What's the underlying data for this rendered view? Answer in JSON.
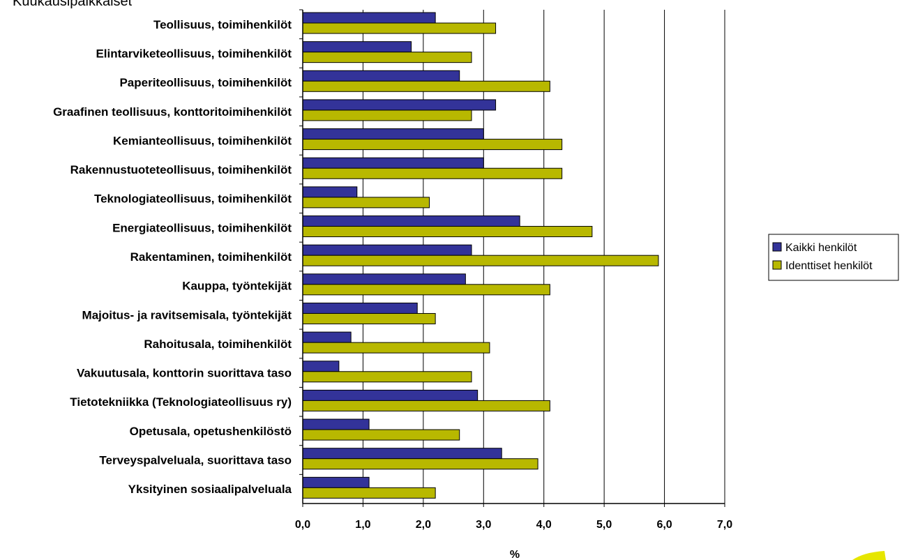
{
  "page": {
    "title": "Kuukausipalkkaiset"
  },
  "chart_data": {
    "type": "bar",
    "orientation": "horizontal",
    "categories": [
      "Teollisuus, toimihenkilöt",
      "Elintarviketeollisuus, toimihenkilöt",
      "Paperiteollisuus, toimihenkilöt",
      "Graafinen teollisuus, konttoritoimihenkilöt",
      "Kemianteollisuus, toimihenkilöt",
      "Rakennustuoteteollisuus, toimihenkilöt",
      "Teknologiateollisuus, toimihenkilöt",
      "Energiateollisuus, toimihenkilöt",
      "Rakentaminen, toimihenkilöt",
      "Kauppa, työntekijät",
      "Majoitus- ja ravitsemisala, työntekijät",
      "Rahoitusala, toimihenkilöt",
      "Vakuutusala, konttorin suorittava taso",
      "Tietotekniikka (Teknologiateollisuus ry)",
      "Opetusala, opetushenkilöstö",
      "Terveyspalveluala, suorittava taso",
      "Yksityinen sosiaalipalveluala"
    ],
    "series": [
      {
        "name": "Kaikki henkilöt",
        "color": "#333399",
        "values": [
          2.2,
          1.8,
          2.6,
          3.2,
          3.0,
          3.0,
          0.9,
          3.6,
          2.8,
          2.7,
          1.9,
          0.8,
          0.6,
          2.9,
          1.1,
          3.3,
          1.1
        ]
      },
      {
        "name": "Identtiset henkilöt",
        "color": "#B8B800",
        "values": [
          3.2,
          2.8,
          4.1,
          2.8,
          4.3,
          4.3,
          2.1,
          4.8,
          5.9,
          4.1,
          2.2,
          3.1,
          2.8,
          4.1,
          2.6,
          3.9,
          2.2
        ]
      }
    ],
    "xlabel": "%",
    "ylabel": "",
    "xlim": [
      0,
      7
    ],
    "xticks": [
      "0,0",
      "1,0",
      "2,0",
      "3,0",
      "4,0",
      "5,0",
      "6,0",
      "7,0"
    ],
    "grid": "vertical gridlines at major ticks",
    "legend": "right"
  }
}
